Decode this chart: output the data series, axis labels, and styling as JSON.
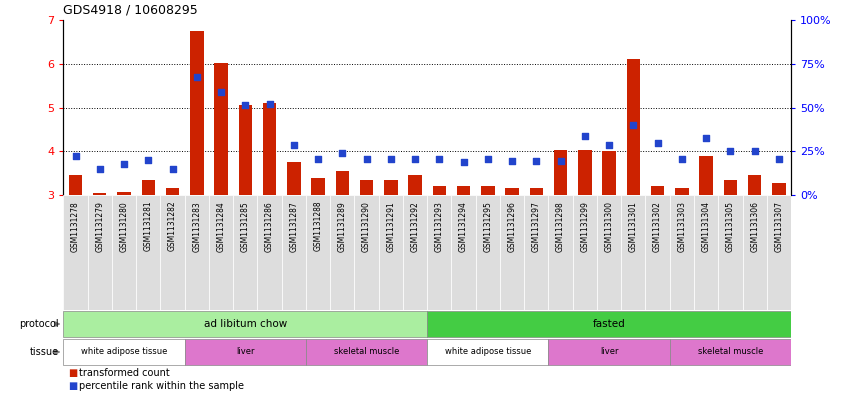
{
  "title": "GDS4918 / 10608295",
  "samples": [
    "GSM1131278",
    "GSM1131279",
    "GSM1131280",
    "GSM1131281",
    "GSM1131282",
    "GSM1131283",
    "GSM1131284",
    "GSM1131285",
    "GSM1131286",
    "GSM1131287",
    "GSM1131288",
    "GSM1131289",
    "GSM1131290",
    "GSM1131291",
    "GSM1131292",
    "GSM1131293",
    "GSM1131294",
    "GSM1131295",
    "GSM1131296",
    "GSM1131297",
    "GSM1131298",
    "GSM1131299",
    "GSM1131300",
    "GSM1131301",
    "GSM1131302",
    "GSM1131303",
    "GSM1131304",
    "GSM1131305",
    "GSM1131306",
    "GSM1131307"
  ],
  "bar_values": [
    3.45,
    3.05,
    3.07,
    3.35,
    3.15,
    6.75,
    6.02,
    5.05,
    5.1,
    3.75,
    3.4,
    3.55,
    3.35,
    3.35,
    3.45,
    3.2,
    3.2,
    3.2,
    3.15,
    3.15,
    4.02,
    4.02,
    4.0,
    6.1,
    3.2,
    3.15,
    3.9,
    3.35,
    3.45,
    3.28
  ],
  "blue_values": [
    3.9,
    3.6,
    3.7,
    3.8,
    3.6,
    5.7,
    5.35,
    5.05,
    5.07,
    4.15,
    3.83,
    3.97,
    3.82,
    3.82,
    3.83,
    3.82,
    3.75,
    3.82,
    3.78,
    3.78,
    3.78,
    4.35,
    4.15,
    4.6,
    4.2,
    3.82,
    4.3,
    4.0,
    4.0,
    3.83
  ],
  "ylim_left": [
    3.0,
    7.0
  ],
  "ylim_right": [
    0,
    100
  ],
  "yticks_left": [
    3,
    4,
    5,
    6,
    7
  ],
  "yticks_right": [
    0,
    25,
    50,
    75,
    100
  ],
  "bar_color": "#cc2200",
  "blue_color": "#2244cc",
  "bar_bottom": 3.0,
  "protocol_groups": [
    {
      "label": "ad libitum chow",
      "start": 0,
      "end": 14,
      "color": "#aaeea0"
    },
    {
      "label": "fasted",
      "start": 15,
      "end": 29,
      "color": "#44cc44"
    }
  ],
  "tissue_groups": [
    {
      "label": "white adipose tissue",
      "start": 0,
      "end": 4,
      "color": "#ffffff"
    },
    {
      "label": "liver",
      "start": 5,
      "end": 9,
      "color": "#dd77cc"
    },
    {
      "label": "skeletal muscle",
      "start": 10,
      "end": 14,
      "color": "#dd77cc"
    },
    {
      "label": "white adipose tissue",
      "start": 15,
      "end": 19,
      "color": "#ffffff"
    },
    {
      "label": "liver",
      "start": 20,
      "end": 24,
      "color": "#dd77cc"
    },
    {
      "label": "skeletal muscle",
      "start": 25,
      "end": 29,
      "color": "#dd77cc"
    }
  ],
  "xticklabel_bg": "#dddddd",
  "title_fontsize": 9,
  "ytick_fontsize": 8,
  "xtick_fontsize": 5.5,
  "legend_items": [
    {
      "label": "transformed count",
      "color": "#cc2200"
    },
    {
      "label": "percentile rank within the sample",
      "color": "#2244cc"
    }
  ]
}
